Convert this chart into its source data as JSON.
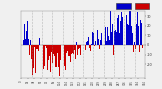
{
  "background_color": "#f0f0f0",
  "plot_bg_color": "#f0f0f0",
  "grid_color": "#888888",
  "bar_color_above": "#0000cc",
  "bar_color_below": "#cc0000",
  "ylim_low": -35,
  "ylim_high": 35,
  "n_points": 365,
  "seed": 12345,
  "n_gridlines": 11
}
